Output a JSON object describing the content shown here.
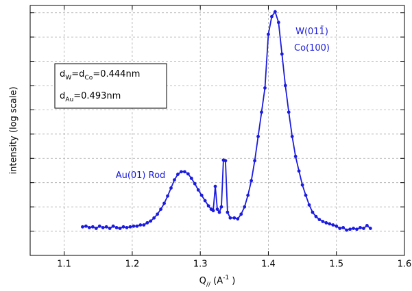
{
  "chart_data": {
    "type": "line",
    "log_y": true,
    "grid": true,
    "color": "#1a1ae0",
    "x_label": [
      {
        "text": "Q"
      },
      {
        "text": "//",
        "sub": true
      },
      {
        "text": " (A"
      },
      {
        "text": "-1",
        "sup": true
      },
      {
        "text": " )"
      }
    ],
    "y_label": "intensity (log scale)",
    "xlim": [
      1.05,
      1.6
    ],
    "xticks": [
      1.1,
      1.2,
      1.3,
      1.4,
      1.5,
      1.6
    ],
    "ylim": [
      0.1,
      2000000000
    ],
    "yticks": [
      1,
      10,
      100,
      1000,
      10000,
      100000,
      1000000,
      10000000,
      100000000,
      1000000000
    ],
    "x": [
      1.127,
      1.132,
      1.137,
      1.142,
      1.147,
      1.152,
      1.157,
      1.162,
      1.167,
      1.172,
      1.177,
      1.182,
      1.187,
      1.192,
      1.197,
      1.202,
      1.207,
      1.212,
      1.217,
      1.222,
      1.227,
      1.232,
      1.237,
      1.242,
      1.247,
      1.252,
      1.257,
      1.262,
      1.267,
      1.272,
      1.277,
      1.282,
      1.287,
      1.292,
      1.297,
      1.302,
      1.307,
      1.312,
      1.316,
      1.319,
      1.322,
      1.325,
      1.328,
      1.331,
      1.334,
      1.337,
      1.34,
      1.344,
      1.35,
      1.355,
      1.36,
      1.365,
      1.37,
      1.375,
      1.38,
      1.385,
      1.39,
      1.395,
      1.4,
      1.405,
      1.41,
      1.415,
      1.42,
      1.425,
      1.43,
      1.435,
      1.44,
      1.445,
      1.45,
      1.455,
      1.46,
      1.465,
      1.47,
      1.475,
      1.48,
      1.485,
      1.49,
      1.495,
      1.5,
      1.505,
      1.51,
      1.515,
      1.52,
      1.525,
      1.53,
      1.535,
      1.54,
      1.545,
      1.55
    ],
    "values": [
      1.5,
      1.6,
      1.4,
      1.5,
      1.3,
      1.6,
      1.4,
      1.5,
      1.3,
      1.6,
      1.4,
      1.3,
      1.5,
      1.4,
      1.5,
      1.6,
      1.6,
      1.8,
      1.8,
      2.2,
      2.6,
      3.5,
      5,
      8,
      14,
      28,
      60,
      130,
      220,
      280,
      280,
      230,
      150,
      90,
      50,
      30,
      18,
      11,
      8,
      7,
      70,
      8,
      6,
      10,
      850,
      800,
      6,
      3.5,
      3.5,
      3.2,
      5,
      10,
      30,
      120,
      800,
      8000,
      80000,
      800000,
      130000000,
      700000000,
      1100000000,
      400000000,
      20000000,
      1000000,
      80000,
      8000,
      1200,
      300,
      80,
      30,
      12,
      6,
      4,
      3,
      2.5,
      2.2,
      2,
      1.8,
      1.6,
      1.3,
      1.4,
      1.1,
      1.2,
      1.3,
      1.2,
      1.4,
      1.3,
      1.7,
      1.3
    ],
    "annotations": [
      {
        "segments": [
          {
            "text": "Au(01) Rod"
          }
        ]
      },
      {
        "segments": [
          {
            "text": "W(011̄)"
          }
        ]
      },
      {
        "segments": [
          {
            "text": "Co(100)"
          }
        ]
      }
    ],
    "legend_box": [
      [
        {
          "text": "d"
        },
        {
          "text": "W",
          "sub": true
        },
        {
          "text": "=d"
        },
        {
          "text": "Co",
          "sub": true
        },
        {
          "text": "=0.444nm"
        }
      ],
      [
        {
          "text": "d"
        },
        {
          "text": "Au",
          "sub": true
        },
        {
          "text": "=0.493nm"
        }
      ]
    ]
  }
}
